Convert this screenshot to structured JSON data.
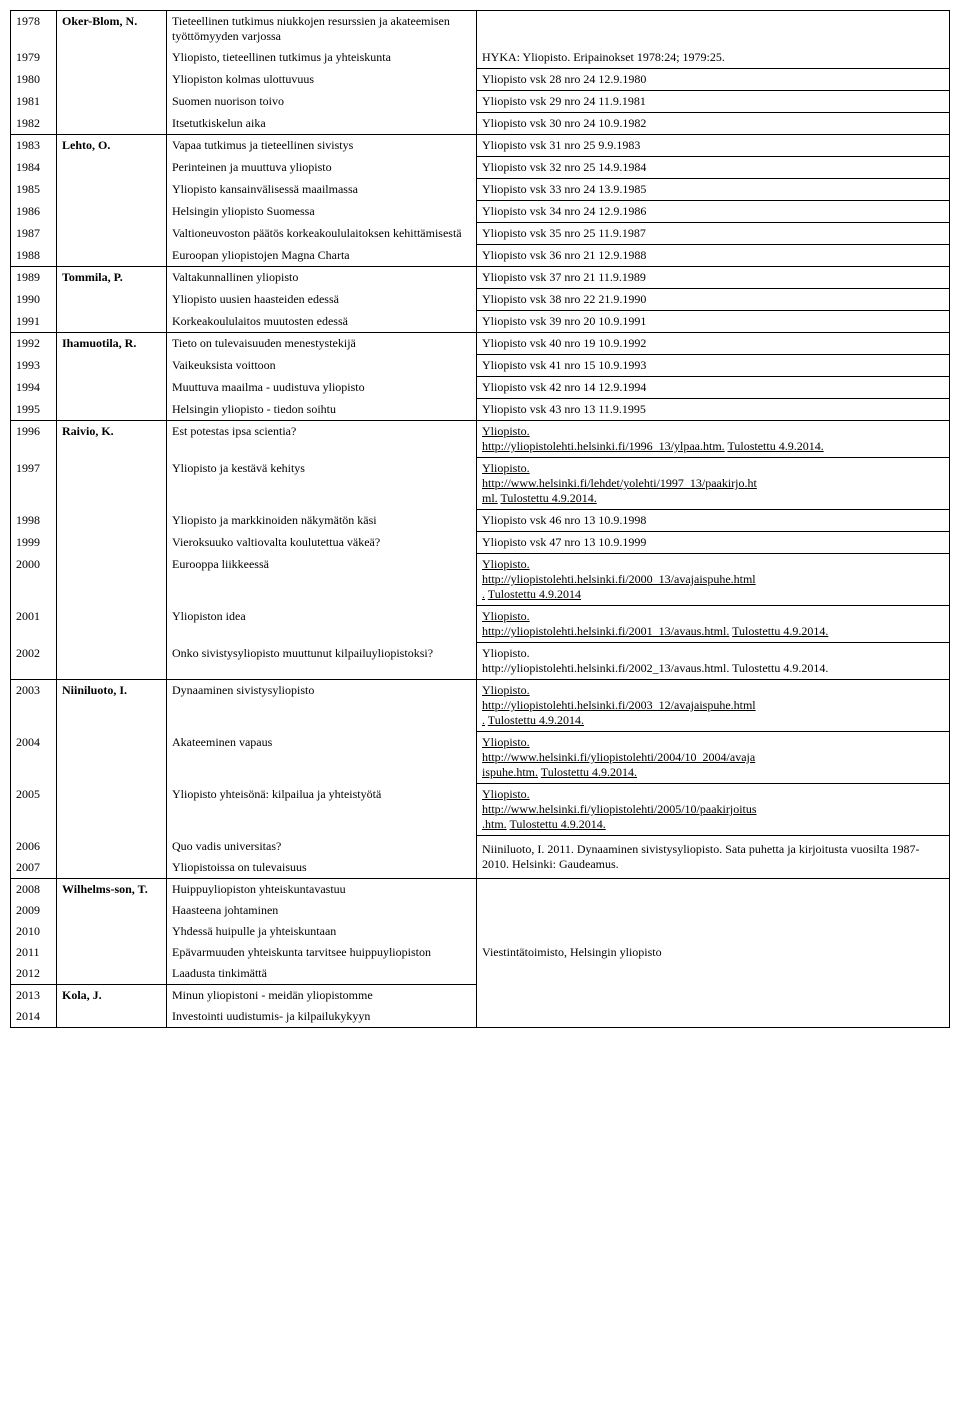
{
  "rows": [
    {
      "year": "1978",
      "author": "Oker-Blom, N.",
      "authorBold": true,
      "title": "Tieteellinen tutkimus niukkojen resurssien ja akateemisen työttömyyden varjossa",
      "source": "",
      "top": true,
      "authorTop": true,
      "sourceTop": true
    },
    {
      "year": "1979",
      "author": "",
      "title": "Yliopisto, tieteellinen tutkimus ja yhteiskunta",
      "source": "HYKA: Yliopisto. Eripainokset 1978:24; 1979:25.",
      "sourceBottom": true
    },
    {
      "year": "1980",
      "author": "",
      "title": "Yliopiston kolmas ulottuvuus",
      "source": "Yliopisto vsk 28 nro 24 12.9.1980",
      "sourceTop": true,
      "sourceBottom": true
    },
    {
      "year": "1981",
      "author": "",
      "title": "Suomen nuorison toivo",
      "source": "Yliopisto vsk 29 nro 24 11.9.1981",
      "sourceBottom": true
    },
    {
      "year": "1982",
      "author": "",
      "title": "Itsetutkiskelun aika",
      "source": "Yliopisto vsk 30 nro 24 10.9.1982",
      "sourceBottom": true,
      "bottom": true,
      "authorBottom": true
    },
    {
      "year": "1983",
      "author": "Lehto, O.",
      "authorBold": true,
      "title": "Vapaa tutkimus ja tieteellinen sivistys",
      "source": "Yliopisto vsk 31 nro 25 9.9.1983",
      "sourceBottom": true,
      "authorTop": true
    },
    {
      "year": "1984",
      "author": "",
      "title": "Perinteinen ja muuttuva yliopisto",
      "source": "Yliopisto vsk 32 nro 25 14.9.1984",
      "sourceBottom": true
    },
    {
      "year": "1985",
      "author": "",
      "title": "Yliopisto kansainvälisessä maailmassa",
      "source": "Yliopisto vsk 33 nro 24 13.9.1985",
      "sourceBottom": true
    },
    {
      "year": "1986",
      "author": "",
      "title": "Helsingin yliopisto Suomessa",
      "source": "Yliopisto vsk 34 nro 24 12.9.1986",
      "sourceBottom": true
    },
    {
      "year": "1987",
      "author": "",
      "title": "Valtioneuvoston päätös korkeakoululaitoksen kehittämisestä",
      "source": "Yliopisto vsk 35 nro 25 11.9.1987",
      "sourceBottom": true
    },
    {
      "year": "1988",
      "author": "",
      "title": "Euroopan yliopistojen Magna Charta",
      "source": "Yliopisto vsk 36 nro 21 12.9.1988",
      "sourceBottom": true,
      "bottom": true,
      "authorBottom": true
    },
    {
      "year": "1989",
      "author": "Tommila, P.",
      "authorBold": true,
      "title": "Valtakunnallinen yliopisto",
      "source": "Yliopisto vsk 37 nro 21 11.9.1989",
      "sourceBottom": true,
      "authorTop": true
    },
    {
      "year": "1990",
      "author": "",
      "title": "Yliopisto uusien haasteiden edessä",
      "source": "Yliopisto vsk 38 nro 22 21.9.1990",
      "sourceBottom": true
    },
    {
      "year": "1991",
      "author": "",
      "title": "Korkeakoululaitos muutosten edessä",
      "source": "Yliopisto vsk 39 nro 20 10.9.1991",
      "sourceBottom": true,
      "bottom": true,
      "authorBottom": true
    },
    {
      "year": "1992",
      "author": "Ihamuotila, R.",
      "authorBold": true,
      "title": "Tieto on tulevaisuuden menestystekijä",
      "source": "Yliopisto vsk 40 nro 19 10.9.1992",
      "sourceBottom": true,
      "authorTop": true
    },
    {
      "year": "1993",
      "author": "",
      "title": "Vaikeuksista voittoon",
      "source": "Yliopisto vsk 41 nro 15 10.9.1993",
      "sourceBottom": true
    },
    {
      "year": "1994",
      "author": "",
      "title": "Muuttuva maailma - uudistuva yliopisto",
      "source": "Yliopisto vsk 42 nro 14 12.9.1994",
      "sourceBottom": true
    },
    {
      "year": "1995",
      "author": "",
      "title": "Helsingin yliopisto - tiedon soihtu",
      "source": "Yliopisto vsk 43 nro 13 11.9.1995",
      "sourceBottom": true,
      "bottom": true,
      "authorBottom": true
    },
    {
      "year": "1996",
      "author": "Raivio, K.",
      "authorBold": true,
      "title": "Est potestas ipsa scientia?",
      "sourceHtml": "<span class='link'>Yliopisto.</span><br><span class='link'>http://yliopistolehti.helsinki.fi/1996_13/ylpaa.htm.</span> <span class='link'>Tulostettu 4.9.2014.</span>",
      "sourceBottom": true,
      "authorTop": true
    },
    {
      "year": "1997",
      "author": "",
      "title": "Yliopisto ja kestävä kehitys",
      "sourceHtml": "<span class='link'>Yliopisto.</span><br><span class='link'>http://www.helsinki.fi/lehdet/yolehti/1997_13/paakirjo.ht</span><br><span class='link'>ml.</span> <span class='link'>Tulostettu 4.9.2014.</span>",
      "sourceBottom": true
    },
    {
      "year": "1998",
      "author": "",
      "title": "Yliopisto ja markkinoiden näkymätön käsi",
      "source": "Yliopisto vsk 46 nro 13 10.9.1998",
      "sourceBottom": true
    },
    {
      "year": "1999",
      "author": "",
      "title": "Vieroksuuko valtiovalta koulutettua väkeä?",
      "source": "Yliopisto vsk 47 nro 13 10.9.1999",
      "sourceBottom": true
    },
    {
      "year": "2000",
      "author": "",
      "title": "Eurooppa liikkeessä",
      "sourceHtml": "<span class='link'>Yliopisto.</span><br><span class='link'>http://yliopistolehti.helsinki.fi/2000_13/avajaispuhe.html</span><br><span class='link'>.</span> <span class='link'>Tulostettu 4.9.2014</span>",
      "sourceBottom": true
    },
    {
      "year": "2001",
      "author": "",
      "title": "Yliopiston idea",
      "sourceHtml": "<span class='link'>Yliopisto.</span><br><span class='link'>http://yliopistolehti.helsinki.fi/2001_13/avaus.html.</span> <span class='link'>Tulostettu 4.9.2014.</span>",
      "sourceBottom": true
    },
    {
      "year": "2002",
      "author": "",
      "title": "Onko sivistysyliopisto muuttunut kilpailuyliopistoksi?",
      "sourceHtml": "Yliopisto.<br>http://yliopistolehti.helsinki.fi/2002_13/avaus.html. Tulostettu 4.9.2014.",
      "sourceBottom": true,
      "bottom": true,
      "authorBottom": true
    },
    {
      "year": "2003",
      "author": "Niiniluoto, I.",
      "authorBold": true,
      "title": "Dynaaminen sivistysyliopisto",
      "sourceHtml": "<span class='link'>Yliopisto.</span><br><span class='link'>http://yliopistolehti.helsinki.fi/2003_12/avajaispuhe.html</span><br><span class='link'>.</span> <span class='link'>Tulostettu 4.9.2014.</span>",
      "sourceBottom": true,
      "authorTop": true
    },
    {
      "year": "2004",
      "author": "",
      "title": "Akateeminen vapaus",
      "sourceHtml": "<span class='link'>Yliopisto.</span><br><span class='link'>http://www.helsinki.fi/yliopistolehti/2004/10_2004/avaja</span><br><span class='link'>ispuhe.htm.</span> <span class='link'>Tulostettu 4.9.2014.</span>",
      "sourceBottom": true
    },
    {
      "year": "2005",
      "author": "",
      "title": "Yliopisto yhteisönä: kilpailua ja yhteistyötä",
      "sourceHtml": "<span class='link'>Yliopisto.</span><br><span class='link'>http://www.helsinki.fi/yliopistolehti/2005/10/paakirjoitus</span><br><span class='link'>.htm.</span> <span class='link'>Tulostettu 4.9.2014.</span>",
      "sourceBottom": true
    },
    {
      "year": "2006",
      "author": "",
      "title": "Quo vadis universitas?",
      "source": ""
    },
    {
      "year": "2007",
      "author": "",
      "title": "Yliopistoissa on tulevaisuus",
      "source": "Niiniluoto, I. 2011. Dynaaminen sivistysyliopisto. Sata puhetta ja kirjoitusta vuosilta 1987-2010. Helsinki: Gaudeamus.",
      "sourceBottom": true,
      "bottom": true,
      "authorBottom": true,
      "mergeSourceUp": true
    },
    {
      "year": "2008",
      "author": "Wilhelms-son, T.",
      "authorBold": true,
      "title": "Huippuyliopiston yhteiskuntavastuu",
      "source": "",
      "authorTop": true,
      "sourceTop": true
    },
    {
      "year": "2009",
      "author": "",
      "title": "Haasteena johtaminen",
      "source": ""
    },
    {
      "year": "2010",
      "author": "",
      "title": "Yhdessä huipulle ja yhteiskuntaan",
      "source": ""
    },
    {
      "year": "2011",
      "author": "",
      "title": "Epävarmuuden yhteiskunta tarvitsee huippuyliopiston",
      "source": "Viestintätoimisto, Helsingin yliopisto"
    },
    {
      "year": "2012",
      "author": "",
      "title": "Laadusta tinkimättä",
      "source": "",
      "bottom": true,
      "authorBottom": true
    },
    {
      "year": "2013",
      "author": "Kola, J.",
      "authorBold": true,
      "title": "Minun yliopistoni - meidän yliopistomme",
      "source": "",
      "authorTop": true
    },
    {
      "year": "2014",
      "author": "",
      "title": "Investointi uudistumis- ja kilpailukykyyn",
      "source": "",
      "bottom": true,
      "authorBottom": true,
      "sourceBottom": true
    }
  ]
}
